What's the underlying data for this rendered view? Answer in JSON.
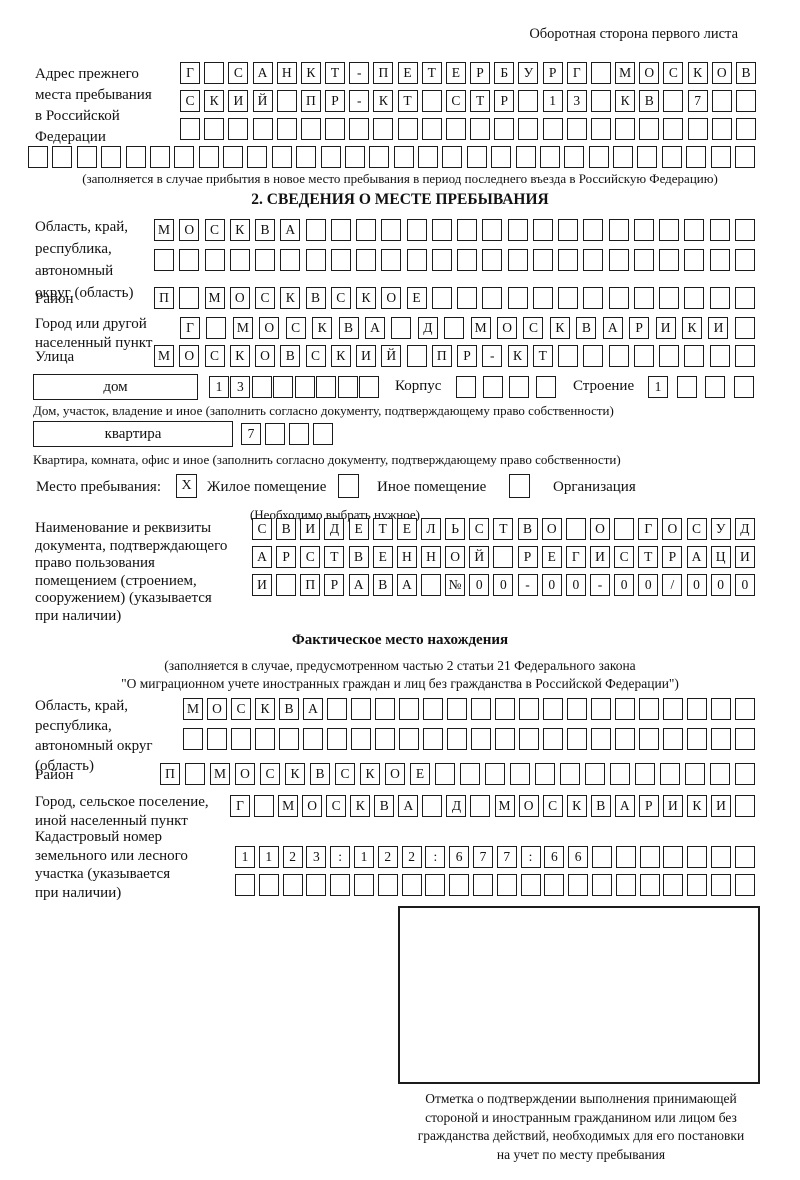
{
  "header_note": "Оборотная сторона первого листа",
  "section1": {
    "label": "Адрес прежнего\nместа пребывания\nв Российской\nФедерации",
    "rows": [
      {
        "text": "Г САНКТ-ПЕТЕРБУРГ МОСКОВ",
        "len": 24
      },
      {
        "text": "СКИЙ ПР-КТ СТР 13 КВ 7",
        "len": 24
      },
      {
        "text": "",
        "len": 24
      },
      {
        "text": "",
        "len": 30
      }
    ],
    "caption": "(заполняется в случае прибытия в новое место пребывания в период последнего въезда в Российскую Федерацию)"
  },
  "section2": {
    "title": "2. СВЕДЕНИЯ О МЕСТЕ ПРЕБЫВАНИЯ",
    "oblast": {
      "label": "Область, край,\nреспублика,\nавтономный\nокруг (область)",
      "rows": [
        {
          "text": "МОСКВА",
          "len": 24
        },
        {
          "text": "",
          "len": 24
        }
      ]
    },
    "raion": {
      "label": "Район",
      "row": {
        "text": "П МОСКВСКОЕ",
        "len": 24
      }
    },
    "city": {
      "label": "Город или другой\nнаселенный пункт",
      "row": {
        "text": "Г МОСКВА Д МОСКВАРИКИ",
        "len": 22
      }
    },
    "street": {
      "label": "Улица",
      "row": {
        "text": "МОСКОВСКИЙ ПР-КТ",
        "len": 24
      }
    },
    "dom": {
      "label": "дом",
      "boxes": {
        "text": "13",
        "len": 8
      },
      "korpus_label": "Корпус",
      "korpus_boxes": {
        "text": "",
        "len": 4
      },
      "stroenie_label": "Строение",
      "stroenie_boxes": {
        "text": "1",
        "len": 4
      },
      "caption": "Дом, участок, владение и иное (заполнить согласно документу, подтверждающему право собственности)"
    },
    "kvartira": {
      "label": "квартира",
      "boxes": {
        "text": "7",
        "len": 4
      },
      "caption": "Квартира, комната, офис и иное (заполнить согласно документу, подтверждающему право собственности)"
    },
    "mesto": {
      "label": "Место пребывания:",
      "checked_mark": "X",
      "opt1": "Жилое помещение",
      "opt2": "Иное помещение",
      "opt3": "Организация",
      "note": "(Необходимо выбрать нужное)"
    },
    "doc": {
      "label": "Наименование и реквизиты\nдокумента, подтверждающего\nправо пользования\nпомещением (строением,\nсооружением) (указывается\nпри наличии)",
      "rows": [
        {
          "text": "СВИДЕТЕЛЬСТВО О ГОСУД",
          "len": 21
        },
        {
          "text": "АРСТВЕННОЙ РЕГИСТРАЦИ",
          "len": 21
        },
        {
          "text": "И ПРАВА №00-00-00/000",
          "len": 21
        }
      ]
    }
  },
  "fact": {
    "title": "Фактическое место нахождения",
    "caption1": "(заполняется в случае, предусмотренном частью 2 статьи 21 Федерального закона",
    "caption2": "\"О миграционном учете иностранных граждан и лиц без гражданства в Российской Федерации\")",
    "oblast": {
      "label": "Область, край,\nреспублика,\nавтономный округ\n(область)",
      "rows": [
        {
          "text": "МОСКВА",
          "len": 24
        },
        {
          "text": "",
          "len": 24
        }
      ]
    },
    "raion": {
      "label": "Район",
      "row": {
        "text": "П МОСКВСКОЕ",
        "len": 24
      }
    },
    "city": {
      "label": "Город, сельское поселение,\nиной населенный пункт",
      "row": {
        "text": "Г МОСКВА Д МОСКВАРИКИ",
        "len": 22
      }
    },
    "cadastre": {
      "label": "Кадастровый номер\nземельного или лесного\nучастка (указывается\nпри наличии)",
      "rows": [
        {
          "text": "1123:122:677:66",
          "len": 22
        },
        {
          "text": "",
          "len": 22
        }
      ]
    }
  },
  "stamp": {
    "caption": "Отметка о подтверждении выполнения принимающей\nстороной и иностранным гражданином или лицом без\nгражданства действий, необходимых для его постановки\nна учет по месту пребывания"
  }
}
